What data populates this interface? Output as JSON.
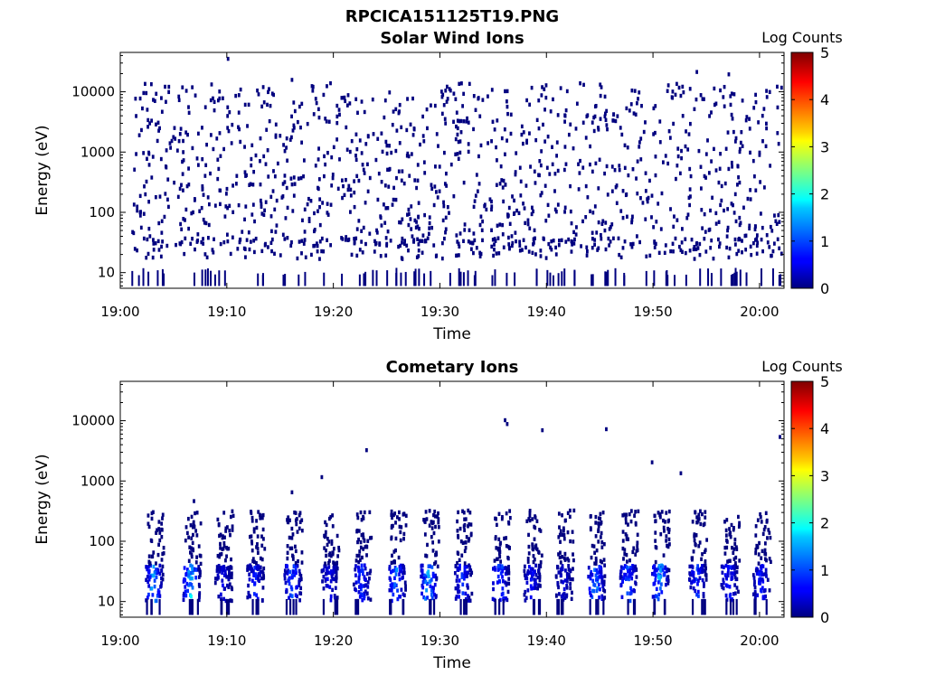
{
  "page": {
    "title": "RPCICA151125T19.PNG"
  },
  "chart_data": [
    {
      "type": "heatmap",
      "title": "Solar Wind Ions",
      "xlabel": "Time",
      "ylabel": "Energy (eV)",
      "xlim": [
        "19:00",
        "20:02"
      ],
      "x_ticks": [
        "19:00",
        "19:10",
        "19:20",
        "19:30",
        "19:40",
        "19:50",
        "20:00"
      ],
      "y_scale": "log",
      "ylim": [
        5.5,
        45000
      ],
      "y_ticks": [
        "10",
        "100",
        "1000",
        "10000"
      ],
      "y_tick_values": [
        10,
        100,
        1000,
        10000
      ],
      "colorbar": {
        "label": "Log Counts",
        "min": 0,
        "max": 5,
        "ticks": [
          "0",
          "1",
          "2",
          "3",
          "4",
          "5"
        ],
        "colormap": "jet"
      },
      "description_note": "Sparse single-count points (log counts ~0, dark blue) scattered across all energies; denser dark blue band near 20-40 eV and vertical streaks near 6-8 eV.",
      "points": [
        {
          "t": 1.5,
          "e": 30,
          "c": 0.1
        },
        {
          "t": 2.5,
          "e": 25,
          "c": 0.1
        },
        {
          "t": 4.0,
          "e": 35,
          "c": 0.1
        },
        {
          "t": 5.5,
          "e": 28,
          "c": 0.1
        },
        {
          "t": 6.3,
          "e": 30,
          "c": 0.1
        },
        {
          "t": 9.0,
          "e": 20,
          "c": 0.1
        },
        {
          "t": 11.5,
          "e": 30,
          "c": 0.1
        },
        {
          "t": 13.0,
          "e": 28,
          "c": 0.1
        },
        {
          "t": 16.0,
          "e": 30,
          "c": 0.1
        },
        {
          "t": 19.0,
          "e": 25,
          "c": 0.1
        },
        {
          "t": 22.5,
          "e": 30,
          "c": 0.1
        },
        {
          "t": 25.5,
          "e": 28,
          "c": 0.1
        },
        {
          "t": 28.0,
          "e": 25,
          "c": 0.1
        },
        {
          "t": 31.0,
          "e": 30,
          "c": 0.1
        },
        {
          "t": 34.5,
          "e": 35,
          "c": 0.1
        },
        {
          "t": 37.0,
          "e": 28,
          "c": 0.1
        },
        {
          "t": 40.5,
          "e": 25,
          "c": 0.1
        },
        {
          "t": 43.0,
          "e": 30,
          "c": 0.1
        },
        {
          "t": 45.5,
          "e": 28,
          "c": 0.1
        },
        {
          "t": 47.5,
          "e": 25,
          "c": 0.1
        },
        {
          "t": 50.5,
          "e": 28,
          "c": 0.1
        },
        {
          "t": 53.0,
          "e": 30,
          "c": 0.1
        },
        {
          "t": 56.0,
          "e": 35,
          "c": 0.1
        },
        {
          "t": 58.5,
          "e": 30,
          "c": 0.1
        },
        {
          "t": 61.0,
          "e": 25,
          "c": 0.1
        }
      ]
    },
    {
      "type": "heatmap",
      "title": "Cometary Ions",
      "xlabel": "Time",
      "ylabel": "Energy (eV)",
      "xlim": [
        "19:00",
        "20:02"
      ],
      "x_ticks": [
        "19:00",
        "19:10",
        "19:20",
        "19:30",
        "19:40",
        "19:50",
        "20:00"
      ],
      "y_scale": "log",
      "ylim": [
        5.5,
        45000
      ],
      "y_ticks": [
        "10",
        "100",
        "1000",
        "10000"
      ],
      "y_tick_values": [
        10,
        100,
        1000,
        10000
      ],
      "colorbar": {
        "label": "Log Counts",
        "min": 0,
        "max": 5,
        "ticks": [
          "0",
          "1",
          "2",
          "3",
          "4",
          "5"
        ],
        "colormap": "jet"
      },
      "description_note": "Periodic bursts (~every 3.3 min) with peak log counts ~1.5-2 (cyan) near 15-30 eV, extending in dark blue up to a few hundred eV.",
      "bursts": [
        {
          "t": 3.0,
          "peak": 1.6
        },
        {
          "t": 6.5,
          "peak": 1.8
        },
        {
          "t": 9.5,
          "peak": 0.6
        },
        {
          "t": 12.5,
          "peak": 0.8
        },
        {
          "t": 16.0,
          "peak": 1.2
        },
        {
          "t": 19.5,
          "peak": 0.7
        },
        {
          "t": 22.5,
          "peak": 1.0
        },
        {
          "t": 25.8,
          "peak": 1.4
        },
        {
          "t": 28.8,
          "peak": 1.7
        },
        {
          "t": 32.0,
          "peak": 0.9
        },
        {
          "t": 35.5,
          "peak": 1.2
        },
        {
          "t": 38.5,
          "peak": 0.7
        },
        {
          "t": 41.5,
          "peak": 0.5
        },
        {
          "t": 44.5,
          "peak": 1.5
        },
        {
          "t": 47.5,
          "peak": 1.3
        },
        {
          "t": 50.5,
          "peak": 1.6
        },
        {
          "t": 54.0,
          "peak": 1.0
        },
        {
          "t": 57.0,
          "peak": 0.9
        },
        {
          "t": 60.0,
          "peak": 0.8
        }
      ]
    }
  ]
}
